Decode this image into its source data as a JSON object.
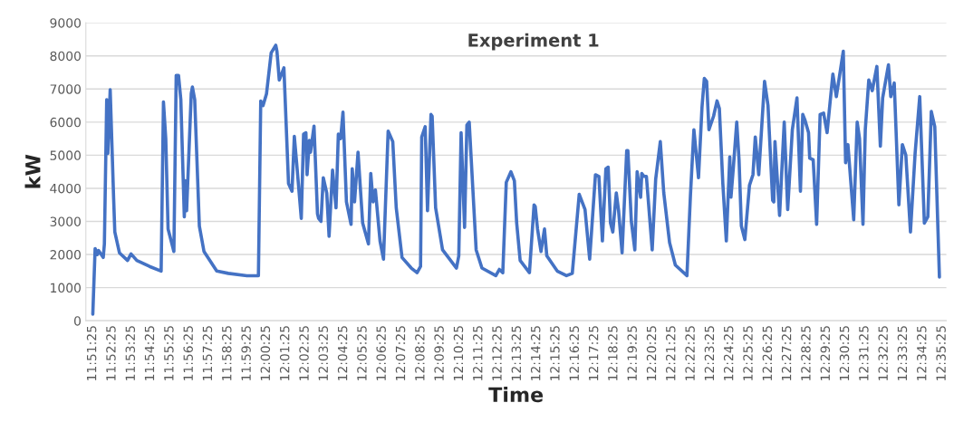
{
  "chart_data": {
    "type": "line",
    "title": "Experiment 1",
    "xlabel": "Time",
    "ylabel": "kW",
    "series": [
      {
        "color": "#4472c4",
        "x": [
          11.857,
          11.859,
          11.861,
          11.862,
          11.866,
          11.867,
          11.869,
          11.87,
          11.872,
          11.875,
          11.876,
          11.88,
          11.887,
          11.89,
          11.895,
          11.906,
          11.916,
          11.918,
          11.92,
          11.922,
          11.927,
          11.929,
          11.931,
          11.933,
          11.936,
          11.937,
          11.938,
          11.942,
          11.943,
          11.945,
          11.949,
          11.953,
          11.964,
          11.974,
          11.99,
          12.0,
          12.002,
          12.004,
          12.007,
          12.011,
          12.015,
          12.016,
          12.018,
          12.02,
          12.022,
          12.026,
          12.029,
          12.031,
          12.033,
          12.037,
          12.039,
          12.041,
          12.042,
          12.044,
          12.045,
          12.048,
          12.051,
          12.052,
          12.054,
          12.056,
          12.059,
          12.061,
          12.064,
          12.067,
          12.069,
          12.071,
          12.073,
          12.076,
          12.08,
          12.081,
          12.083,
          12.086,
          12.09,
          12.095,
          12.097,
          12.099,
          12.101,
          12.105,
          12.108,
          12.112,
          12.116,
          12.119,
          12.124,
          12.132,
          12.137,
          12.14,
          12.141,
          12.144,
          12.146,
          12.149,
          12.15,
          12.153,
          12.159,
          12.171,
          12.173,
          12.175,
          12.178,
          12.18,
          12.182,
          12.188,
          12.193,
          12.205,
          12.208,
          12.211,
          12.214,
          12.218,
          12.221,
          12.223,
          12.226,
          12.234,
          12.238,
          12.239,
          12.241,
          12.244,
          12.247,
          12.249,
          12.258,
          12.266,
          12.271,
          12.277,
          12.282,
          12.286,
          12.291,
          12.294,
          12.297,
          12.3,
          12.302,
          12.304,
          12.306,
          12.309,
          12.311,
          12.314,
          12.318,
          12.319,
          12.322,
          12.325,
          12.327,
          12.33,
          12.331,
          12.333,
          12.335,
          12.34,
          12.343,
          12.347,
          12.35,
          12.355,
          12.36,
          12.37,
          12.373,
          12.376,
          12.38,
          12.383,
          12.385,
          12.387,
          12.389,
          12.393,
          12.396,
          12.398,
          12.401,
          12.404,
          12.407,
          12.408,
          12.41,
          12.413,
          12.415,
          12.417,
          12.42,
          12.424,
          12.427,
          12.429,
          12.432,
          12.437,
          12.44,
          12.444,
          12.445,
          12.446,
          12.45,
          12.454,
          12.457,
          12.461,
          12.465,
          12.468,
          12.47,
          12.472,
          12.475,
          12.476,
          12.479,
          12.482,
          12.485,
          12.488,
          12.491,
          12.496,
          12.499,
          12.505,
          12.507,
          12.509,
          12.514,
          12.517,
          12.519,
          12.522,
          12.524,
          12.527,
          12.53,
          12.534,
          12.537,
          12.539,
          12.544,
          12.546,
          12.549,
          12.553,
          12.556,
          12.559,
          12.563,
          12.567,
          12.571,
          12.575,
          12.578,
          12.581,
          12.584,
          12.588
        ],
        "values": [
          200,
          2180,
          2000,
          2120,
          1910,
          2320,
          6680,
          5050,
          6980,
          3680,
          2680,
          2050,
          1820,
          2020,
          1820,
          1640,
          1500,
          6610,
          5500,
          2770,
          2090,
          7410,
          7410,
          6680,
          3140,
          4230,
          3320,
          6860,
          7060,
          6680,
          2860,
          2090,
          1500,
          1430,
          1360,
          1360,
          6640,
          6500,
          6860,
          8090,
          8320,
          8140,
          7270,
          7450,
          7640,
          4140,
          3910,
          5570,
          4770,
          3090,
          5640,
          5680,
          4410,
          5450,
          5090,
          5880,
          3230,
          3090,
          3000,
          4320,
          3860,
          2550,
          4550,
          3410,
          5640,
          5500,
          6300,
          3590,
          2910,
          4590,
          3590,
          5090,
          2950,
          2320,
          4450,
          3590,
          3950,
          2410,
          1860,
          5730,
          5410,
          3410,
          1910,
          1590,
          1450,
          1640,
          5550,
          5860,
          3320,
          6230,
          6180,
          3410,
          2140,
          1590,
          1960,
          5680,
          2820,
          5910,
          6000,
          2140,
          1590,
          1360,
          1550,
          1450,
          4180,
          4500,
          4230,
          2950,
          1820,
          1450,
          3500,
          3450,
          2770,
          2090,
          2770,
          1960,
          1500,
          1360,
          1430,
          3820,
          3360,
          1860,
          4410,
          4360,
          2410,
          4590,
          4640,
          2950,
          2680,
          3860,
          3320,
          2050,
          5140,
          5140,
          3000,
          2140,
          4500,
          3730,
          4450,
          4360,
          4360,
          2140,
          4270,
          5410,
          3860,
          2360,
          1680,
          1360,
          3770,
          5770,
          4320,
          6450,
          7320,
          7230,
          5770,
          6180,
          6640,
          6410,
          4140,
          2410,
          4950,
          3730,
          4590,
          6000,
          4860,
          2860,
          2450,
          4090,
          4410,
          5550,
          4410,
          7230,
          6500,
          3640,
          3590,
          5410,
          3180,
          6000,
          3360,
          5770,
          6730,
          3910,
          6230,
          6050,
          5680,
          4910,
          4860,
          2910,
          6230,
          6270,
          5680,
          7450,
          6770,
          8140,
          4770,
          5320,
          3050,
          6000,
          5500,
          2910,
          5770,
          7270,
          6950,
          7680,
          5270,
          6730,
          7730,
          6770,
          7180,
          3500,
          5320,
          5000,
          2680,
          5050,
          6770,
          2950,
          3140,
          6320,
          5860,
          1320
        ]
      }
    ],
    "xlim": [
      11.851,
      12.594
    ],
    "xticks": [
      {
        "value": 11.8569,
        "label": "11:51:25"
      },
      {
        "value": 11.8736,
        "label": "11:52:25"
      },
      {
        "value": 11.8903,
        "label": "11:53:25"
      },
      {
        "value": 11.9069,
        "label": "11:54:25"
      },
      {
        "value": 11.9236,
        "label": "11:55:25"
      },
      {
        "value": 11.9403,
        "label": "11:56:25"
      },
      {
        "value": 11.9569,
        "label": "11:57:25"
      },
      {
        "value": 11.9736,
        "label": "11:58:25"
      },
      {
        "value": 11.9903,
        "label": "11:59:25"
      },
      {
        "value": 12.0069,
        "label": "12:00:25"
      },
      {
        "value": 12.0236,
        "label": "12:01:25"
      },
      {
        "value": 12.0403,
        "label": "12:02:25"
      },
      {
        "value": 12.0569,
        "label": "12:03:25"
      },
      {
        "value": 12.0736,
        "label": "12:04:25"
      },
      {
        "value": 12.0903,
        "label": "12:05:25"
      },
      {
        "value": 12.1069,
        "label": "12:06:25"
      },
      {
        "value": 12.1236,
        "label": "12:07:25"
      },
      {
        "value": 12.1403,
        "label": "12:08:25"
      },
      {
        "value": 12.1569,
        "label": "12:09:25"
      },
      {
        "value": 12.1736,
        "label": "12:10:25"
      },
      {
        "value": 12.1903,
        "label": "12:11:25"
      },
      {
        "value": 12.2069,
        "label": "12:12:25"
      },
      {
        "value": 12.2236,
        "label": "12:13:25"
      },
      {
        "value": 12.2403,
        "label": "12:14:25"
      },
      {
        "value": 12.2569,
        "label": "12:15:25"
      },
      {
        "value": 12.2736,
        "label": "12:16:25"
      },
      {
        "value": 12.2903,
        "label": "12:17:25"
      },
      {
        "value": 12.3069,
        "label": "12:18:25"
      },
      {
        "value": 12.3236,
        "label": "12:19:25"
      },
      {
        "value": 12.3403,
        "label": "12:20:25"
      },
      {
        "value": 12.3569,
        "label": "12:21:25"
      },
      {
        "value": 12.3736,
        "label": "12:22:25"
      },
      {
        "value": 12.3903,
        "label": "12:23:25"
      },
      {
        "value": 12.4069,
        "label": "12:24:25"
      },
      {
        "value": 12.4236,
        "label": "12:25:25"
      },
      {
        "value": 12.4403,
        "label": "12:26:25"
      },
      {
        "value": 12.4569,
        "label": "12:27:25"
      },
      {
        "value": 12.4736,
        "label": "12:28:25"
      },
      {
        "value": 12.4903,
        "label": "12:29:25"
      },
      {
        "value": 12.5069,
        "label": "12:30:25"
      },
      {
        "value": 12.5236,
        "label": "12:31:25"
      },
      {
        "value": 12.5403,
        "label": "12:32:25"
      },
      {
        "value": 12.5569,
        "label": "12:33:25"
      },
      {
        "value": 12.5736,
        "label": "12:34:25"
      },
      {
        "value": 12.5903,
        "label": "12:35:25"
      }
    ],
    "ylim": [
      0,
      9000
    ],
    "yticks": [
      0,
      1000,
      2000,
      3000,
      4000,
      5000,
      6000,
      7000,
      8000,
      9000
    ],
    "grid": "y",
    "legend": false,
    "marker": "none",
    "line_style": "solid"
  }
}
